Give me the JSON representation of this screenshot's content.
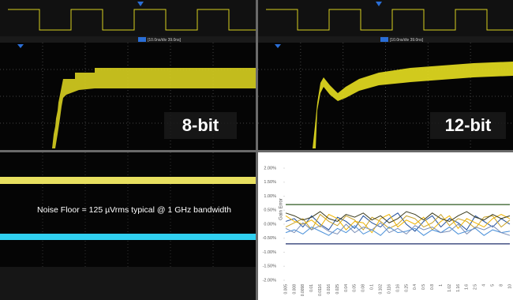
{
  "scope_8bit": {
    "label": "8-bit",
    "timebase": "[10.0ns/div  39.0ns]"
  },
  "scope_12bit": {
    "label": "12-bit",
    "timebase": "[10.0ns/div  39.0ns]"
  },
  "noise_floor": {
    "caption": "Noise Floor = 125 µVrms typical @ 1 GHz bandwidth"
  },
  "chart_data": {
    "type": "line",
    "y_label": "Gain Error",
    "categories": [
      "0.005",
      "0.008",
      "0.0098",
      "0.01",
      "0.0116",
      "0.016",
      "0.025",
      "0.04",
      "0.05",
      "0.08",
      "0.1",
      "0.102",
      "0.116",
      "0.16",
      "0.25",
      "0.4",
      "0.5",
      "0.8",
      "1",
      "1.02",
      "1.16",
      "1.6",
      "2.5",
      "4",
      "5",
      "8",
      "10"
    ],
    "ylim": [
      -2,
      2
    ],
    "yticks": [
      {
        "value": 2,
        "label": "2.00%"
      },
      {
        "value": 1.5,
        "label": "1.50%"
      },
      {
        "value": 1,
        "label": "1.00%"
      },
      {
        "value": 0.5,
        "label": "0.50%"
      },
      {
        "value": 0,
        "label": "0.00%"
      },
      {
        "value": -0.5,
        "label": "-0.50%"
      },
      {
        "value": -1,
        "label": "-1.00%"
      },
      {
        "value": -1.5,
        "label": "-1.50%"
      },
      {
        "value": -2,
        "label": "-2.00%"
      }
    ],
    "limit_lines": [
      {
        "value": 0.7,
        "color": "#2d5a1f"
      },
      {
        "value": -0.7,
        "color": "#1f2f6b"
      }
    ],
    "series": [
      {
        "color": "#1f4e9c",
        "values": [
          0.1,
          0.2,
          -0.1,
          0.3,
          0.0,
          -0.2,
          0.25,
          0.1,
          -0.15,
          0.3,
          0.05,
          -0.1,
          0.2,
          0.4,
          0.0,
          -0.25,
          0.1,
          0.3,
          -0.1,
          0.2,
          0.05,
          -0.2,
          0.3,
          0.1,
          -0.1,
          0.2,
          0.0
        ]
      },
      {
        "color": "#c9a227",
        "values": [
          -0.1,
          0.05,
          0.2,
          -0.2,
          0.35,
          0.1,
          -0.05,
          0.3,
          0.15,
          -0.2,
          0.25,
          0.1,
          -0.15,
          0.0,
          0.3,
          0.2,
          -0.1,
          0.05,
          0.35,
          -0.05,
          0.2,
          0.1,
          -0.15,
          0.25,
          0.3,
          -0.1,
          0.15
        ]
      },
      {
        "color": "#f0b400",
        "values": [
          0.3,
          0.1,
          0.0,
          0.15,
          -0.1,
          0.35,
          0.2,
          -0.2,
          0.1,
          0.05,
          -0.3,
          0.2,
          0.35,
          -0.1,
          0.15,
          0.0,
          0.25,
          -0.2,
          0.1,
          0.3,
          -0.15,
          0.2,
          0.05,
          -0.1,
          0.2,
          0.35,
          0.2
        ]
      },
      {
        "color": "#4a90d9",
        "values": [
          -0.3,
          -0.2,
          -0.35,
          -0.1,
          -0.25,
          -0.4,
          -0.15,
          -0.3,
          -0.05,
          -0.35,
          -0.2,
          -0.4,
          -0.1,
          -0.3,
          -0.25,
          -0.15,
          -0.4,
          -0.2,
          -0.3,
          -0.1,
          -0.35,
          -0.25,
          -0.15,
          -0.4,
          -0.2,
          -0.3,
          -0.25
        ]
      },
      {
        "color": "#3d3d1f",
        "values": [
          0.4,
          0.3,
          0.15,
          0.25,
          0.45,
          0.2,
          0.1,
          0.35,
          0.25,
          0.4,
          0.15,
          0.3,
          0.05,
          0.2,
          0.45,
          0.35,
          0.15,
          0.4,
          0.2,
          0.1,
          0.3,
          0.45,
          0.25,
          0.15,
          0.35,
          0.2,
          0.3
        ]
      },
      {
        "color": "#7a8fb8",
        "values": [
          -0.15,
          -0.3,
          0.05,
          -0.2,
          -0.05,
          -0.25,
          -0.35,
          0.0,
          -0.3,
          -0.1,
          -0.2,
          0.05,
          -0.3,
          -0.15,
          -0.35,
          -0.05,
          -0.2,
          -0.1,
          -0.3,
          -0.25,
          0.0,
          -0.35,
          -0.1,
          -0.2,
          -0.05,
          -0.3,
          -0.4
        ]
      }
    ]
  }
}
